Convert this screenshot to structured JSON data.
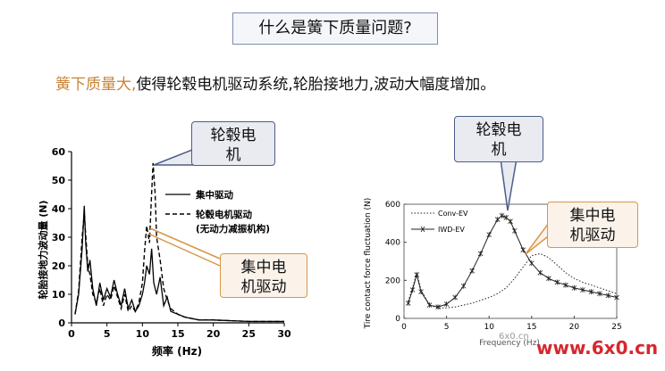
{
  "slide": {
    "title": "什么是簧下质量问题?",
    "subtitle_highlight": "簧下质量大,",
    "subtitle_rest": "使得轮毂电机驱动系统,轮胎接地力,波动大幅度增加。",
    "callout_left_hub": "轮毂电\n机",
    "callout_left_central": "集中电\n机驱动",
    "callout_right_hub": "轮毂电\n机",
    "callout_right_central": "集中电\n机驱动",
    "watermark": "www.6x0.cn",
    "watermark_small": "6x0.cn"
  },
  "chart_data": [
    {
      "type": "line",
      "xlabel": "频率 (Hz)",
      "ylabel": "轮胎接地力波动量 (N)",
      "xlim": [
        0,
        30
      ],
      "ylim": [
        0,
        60
      ],
      "xticks": [
        "0",
        "5",
        "10",
        "15",
        "20",
        "25",
        "30"
      ],
      "yticks": [
        "0",
        "10",
        "20",
        "30",
        "40",
        "50",
        "60"
      ],
      "legend": [
        "集中驱动",
        "轮毂电机驱动",
        "(无动力减振机构)"
      ],
      "series": [
        {
          "name": "集中驱动",
          "x": [
            0.5,
            1,
            1.5,
            1.8,
            2,
            2.3,
            2.6,
            3,
            3.5,
            4,
            4.5,
            5,
            5.5,
            6,
            6.5,
            7,
            7.5,
            8,
            8.5,
            9,
            9.5,
            10,
            10.3,
            10.6,
            11,
            11.3,
            11.6,
            12,
            12.5,
            13,
            13.5,
            14,
            15,
            16,
            18,
            20,
            25,
            30
          ],
          "y": [
            3,
            10,
            26,
            41,
            28,
            18,
            22,
            12,
            6,
            14,
            8,
            12,
            9,
            15,
            10,
            6,
            12,
            5,
            8,
            4,
            6,
            10,
            14,
            20,
            17,
            26,
            14,
            10,
            16,
            6,
            9,
            4,
            3,
            2,
            1,
            1,
            0.5,
            0.5
          ]
        },
        {
          "name": "轮毂电机驱动",
          "x": [
            0.5,
            1,
            1.5,
            1.8,
            2,
            2.3,
            2.6,
            3,
            3.5,
            4,
            4.5,
            5,
            5.5,
            6,
            6.5,
            7,
            7.5,
            8,
            8.5,
            9,
            9.5,
            10,
            10.3,
            10.6,
            11,
            11.2,
            11.5,
            11.8,
            12,
            12.5,
            13,
            13.5,
            14,
            15,
            16,
            18,
            20,
            25,
            30
          ],
          "y": [
            3,
            11,
            30,
            38,
            31,
            20,
            17,
            10,
            7,
            12,
            6,
            10,
            8,
            13,
            9,
            5,
            10,
            4,
            6,
            4,
            7,
            14,
            25,
            34,
            28,
            40,
            56,
            45,
            30,
            22,
            12,
            8,
            5,
            3,
            2,
            1,
            1,
            0.5,
            0.5
          ]
        }
      ]
    },
    {
      "type": "line",
      "xlabel": "Frequency (Hz)",
      "ylabel": "Tire contact force fluctuation (N)",
      "xlim": [
        0,
        25
      ],
      "ylim": [
        0,
        600
      ],
      "xticks": [
        "0",
        "5",
        "10",
        "15",
        "20",
        "25"
      ],
      "yticks": [
        "0",
        "200",
        "400",
        "600"
      ],
      "legend": [
        "Conv-EV",
        "IWD-EV"
      ],
      "series": [
        {
          "name": "Conv-EV",
          "x": [
            0.5,
            1,
            1.5,
            2,
            3,
            4,
            5,
            6,
            7,
            8,
            9,
            10,
            11,
            12,
            13,
            14,
            15,
            16,
            17,
            18,
            19,
            20,
            21,
            22,
            23,
            24,
            25
          ],
          "y": [
            90,
            160,
            240,
            150,
            70,
            55,
            55,
            60,
            70,
            80,
            95,
            110,
            130,
            160,
            210,
            270,
            330,
            340,
            320,
            280,
            240,
            210,
            190,
            175,
            160,
            145,
            130
          ]
        },
        {
          "name": "IWD-EV",
          "x": [
            0.5,
            1,
            1.5,
            2,
            3,
            4,
            5,
            6,
            7,
            8,
            9,
            10,
            11,
            11.5,
            12,
            12.5,
            13,
            14,
            15,
            16,
            17,
            18,
            19,
            20,
            21,
            22,
            23,
            24,
            25
          ],
          "y": [
            80,
            150,
            230,
            140,
            70,
            60,
            75,
            110,
            170,
            250,
            340,
            440,
            520,
            540,
            530,
            510,
            460,
            360,
            290,
            240,
            210,
            190,
            175,
            160,
            150,
            140,
            130,
            120,
            110
          ]
        }
      ]
    }
  ]
}
